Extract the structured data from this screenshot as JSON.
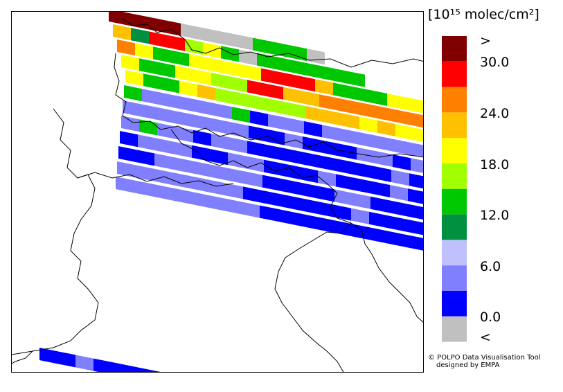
{
  "legend": {
    "title": "[10¹⁵ molec/cm²]",
    "labels": [
      ">",
      "30.0",
      "24.0",
      "18.0",
      "12.0",
      "6.0",
      "0.0",
      "<"
    ],
    "bins": [
      {
        "range": "above 30",
        "color": "#800000"
      },
      {
        "range": "27-30",
        "color": "#ff0000"
      },
      {
        "range": "24-27",
        "color": "#ff8000"
      },
      {
        "range": "21-24",
        "color": "#ffc000"
      },
      {
        "range": "18-21",
        "color": "#ffff00"
      },
      {
        "range": "15-18",
        "color": "#a0ff00"
      },
      {
        "range": "12-15",
        "color": "#00c800"
      },
      {
        "range": "9-12",
        "color": "#009040"
      },
      {
        "range": "6-9",
        "color": "#c0c0ff"
      },
      {
        "range": "3-6",
        "color": "#8080ff"
      },
      {
        "range": "0-3",
        "color": "#0000ff"
      },
      {
        "range": "below 0",
        "color": "#c0c0c0"
      }
    ]
  },
  "credit": {
    "line1": "© POLPO Data Visualisation Tool",
    "line2": "designed by EMPA"
  },
  "map": {
    "region": "Alps / Northern Italy",
    "rows": [
      "ddddLLLLgggL",
      "sjrrpywLgggggg",
      "oyGGyyyyrrrsgGGyys",
      "yGGyypprrssooooooo",
      "yGGyspppppsssysyyy",
      "GcccccGbccbcccccccccc",
      "cccccccbbcbbbccbccccbb",
      "cGccbccbbbbbbbbcbbbccb",
      "bcccbbccbbbcbbbcbbbccbb",
      "bbccccccbbbbccbbbbbbcbbb",
      "cccccccbbbbbbcbbbbbbbbb",
      "ccccccccbbbbbbbbbbcbbbbb"
    ],
    "bottom_swath": "bbcbbbbbbbb"
  }
}
